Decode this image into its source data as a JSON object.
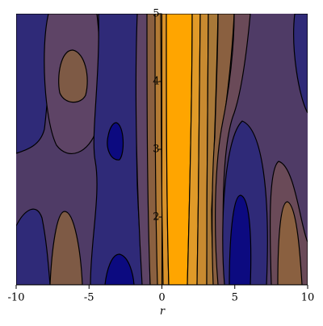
{
  "chart_data": {
    "type": "contour",
    "x_label": "r",
    "xlim": [
      -10,
      10
    ],
    "ylim": [
      1,
      5
    ],
    "xticks": [
      -10,
      -5,
      0,
      5,
      10
    ],
    "yticks": [
      2,
      3,
      4,
      5
    ]
  }
}
